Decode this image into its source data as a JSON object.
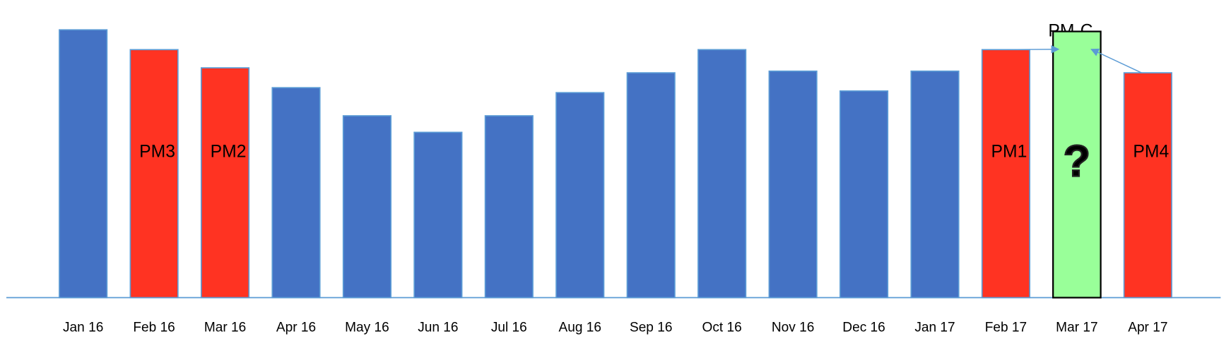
{
  "chart_data": {
    "type": "bar",
    "categories": [
      "Jan 16",
      "Feb 16",
      "Mar 16",
      "Apr 16",
      "May 16",
      "Jun 16",
      "Jul 16",
      "Aug 16",
      "Sep 16",
      "Oct 16",
      "Nov 16",
      "Dec 16",
      "Jan 17",
      "Feb 17",
      "Mar 17",
      "Apr 17"
    ],
    "values": [
      162,
      150,
      139,
      127,
      110,
      100,
      110,
      124,
      136,
      150,
      137,
      125,
      137,
      150,
      161,
      136
    ],
    "value_labels": [
      null,
      null,
      null,
      null,
      null,
      null,
      null,
      null,
      null,
      null,
      null,
      null,
      null,
      null,
      "?",
      null
    ],
    "colors": [
      "#4472c4",
      "#ff3322",
      "#ff3322",
      "#4472c4",
      "#4472c4",
      "#4472c4",
      "#4472c4",
      "#4472c4",
      "#4472c4",
      "#4472c4",
      "#4472c4",
      "#4472c4",
      "#4472c4",
      "#ff3322",
      "#99ff99",
      "#ff3322"
    ],
    "bar_labels": [
      null,
      "PM3",
      "PM2",
      null,
      null,
      null,
      null,
      null,
      null,
      null,
      null,
      null,
      null,
      "PM1",
      null,
      "PM4"
    ],
    "combined_label": "PM-C",
    "ylim": [
      0,
      180
    ]
  }
}
